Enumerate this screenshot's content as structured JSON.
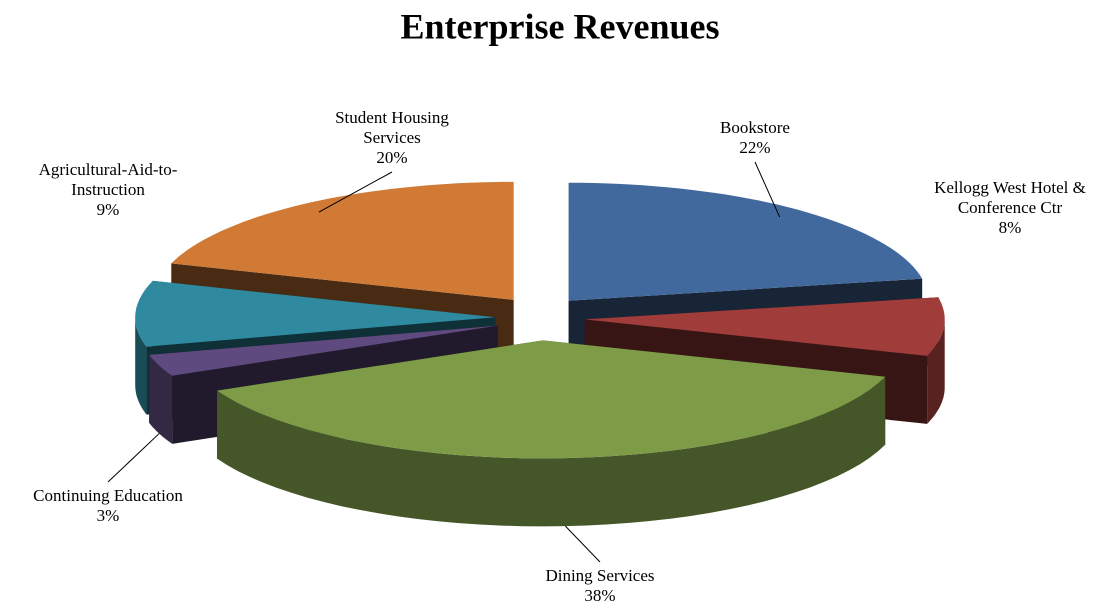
{
  "chart_data": {
    "type": "pie",
    "title": "Enterprise Revenues",
    "categories": [
      "Bookstore",
      "Kellogg West Hotel & Conference Ctr",
      "Dining Services",
      "Continuing Education",
      "Agricultural-Aid-to-Instruction",
      "Student Housing Services"
    ],
    "values": [
      22,
      8,
      38,
      3,
      9,
      20
    ],
    "value_labels": [
      "22%",
      "8%",
      "38%",
      "3%",
      "9%",
      "20%"
    ],
    "colors": [
      "#41699e",
      "#a03d3b",
      "#7e9c48",
      "#5e4a7e",
      "#2f8aa0",
      "#d07a35"
    ]
  }
}
